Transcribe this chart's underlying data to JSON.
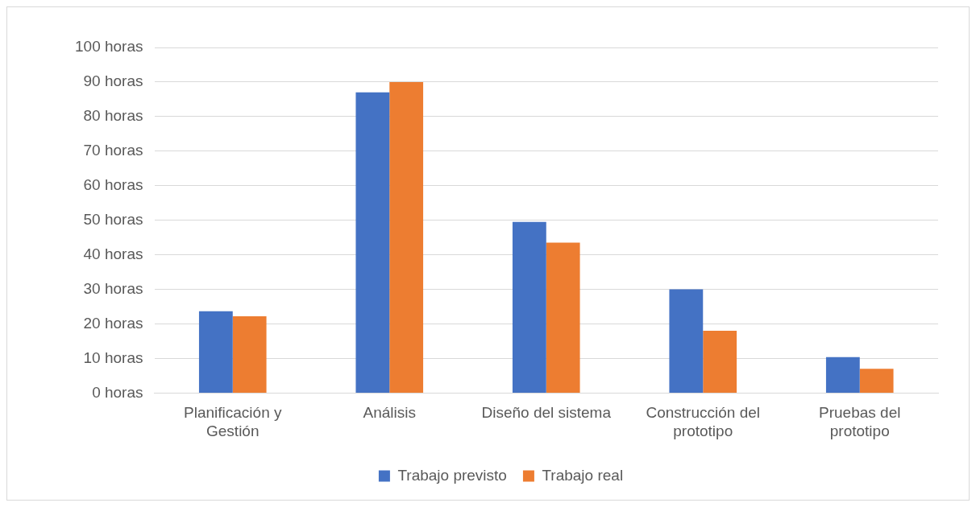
{
  "chart_data": {
    "type": "bar",
    "categories": [
      "Planificación y Gestión",
      "Análisis",
      "Diseño del sistema",
      "Construcción del prototipo",
      "Pruebas del prototipo"
    ],
    "series": [
      {
        "name": "Trabajo previsto",
        "color": "#4472c4",
        "values": [
          23.7,
          87,
          49.5,
          30,
          10.4
        ]
      },
      {
        "name": "Trabajo real",
        "color": "#ed7d31",
        "values": [
          22.2,
          90,
          43.5,
          18,
          7
        ]
      }
    ],
    "ylim": [
      0,
      100
    ],
    "yticks": [
      {
        "value": 0,
        "label": "0 horas"
      },
      {
        "value": 10,
        "label": "10 horas"
      },
      {
        "value": 20,
        "label": "20 horas"
      },
      {
        "value": 30,
        "label": "30 horas"
      },
      {
        "value": 40,
        "label": "40 horas"
      },
      {
        "value": 50,
        "label": "50 horas"
      },
      {
        "value": 60,
        "label": "60 horas"
      },
      {
        "value": 70,
        "label": "70 horas"
      },
      {
        "value": 80,
        "label": "80 horas"
      },
      {
        "value": 90,
        "label": "90 horas"
      },
      {
        "value": 100,
        "label": "100 horas"
      }
    ],
    "grid": "y",
    "legend": "bottom"
  }
}
